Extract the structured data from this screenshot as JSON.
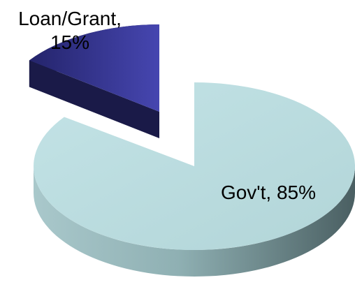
{
  "chart_data": {
    "type": "pie",
    "title": "",
    "categories": [
      "Gov't",
      "Loan/Grant"
    ],
    "values": [
      85,
      15
    ],
    "unit": "%",
    "style": "3d-exploded",
    "colors": {
      "Gov't": "#b9dcdf",
      "Loan/Grant": "#3a3a9e"
    },
    "labels": [
      {
        "category": "Gov't",
        "text": "Gov't, 85%"
      },
      {
        "category": "Loan/Grant",
        "line1": "Loan/Grant,",
        "line2": "15%"
      }
    ]
  }
}
